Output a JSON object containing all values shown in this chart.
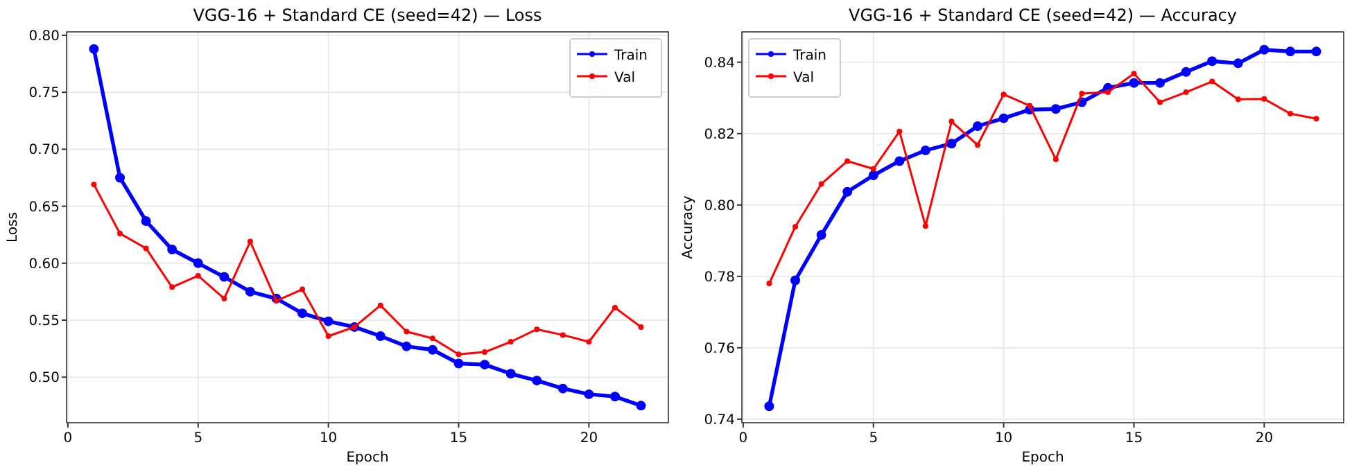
{
  "chart_data": [
    {
      "type": "line",
      "title": "VGG-16 + Standard CE (seed=42) — Loss",
      "xlabel": "Epoch",
      "ylabel": "Loss",
      "x": [
        1,
        2,
        3,
        4,
        5,
        6,
        7,
        8,
        9,
        10,
        11,
        12,
        13,
        14,
        15,
        16,
        17,
        18,
        19,
        20,
        21,
        22
      ],
      "series": [
        {
          "name": "Train",
          "color": "#0000ff",
          "values": [
            0.788,
            0.675,
            0.637,
            0.612,
            0.6,
            0.588,
            0.575,
            0.569,
            0.556,
            0.549,
            0.544,
            0.536,
            0.527,
            0.524,
            0.512,
            0.511,
            0.503,
            0.497,
            0.49,
            0.485,
            0.483,
            0.475
          ]
        },
        {
          "name": "Val",
          "color": "#ff0000",
          "values": [
            0.669,
            0.626,
            0.613,
            0.579,
            0.589,
            0.569,
            0.619,
            0.567,
            0.577,
            0.536,
            0.544,
            0.563,
            0.54,
            0.534,
            0.52,
            0.522,
            0.531,
            0.542,
            0.537,
            0.531,
            0.561,
            0.544
          ]
        }
      ],
      "xlim": [
        -0.05,
        23.05
      ],
      "xticks": [
        0,
        5,
        10,
        15,
        20
      ],
      "ylim": [
        0.46,
        0.803
      ],
      "yticks": [
        {
          "value": 0.5,
          "label": "0.50"
        },
        {
          "value": 0.55,
          "label": "0.55"
        },
        {
          "value": 0.6,
          "label": "0.60"
        },
        {
          "value": 0.65,
          "label": "0.65"
        },
        {
          "value": 0.7,
          "label": "0.70"
        },
        {
          "value": 0.75,
          "label": "0.75"
        },
        {
          "value": 0.8,
          "label": "0.80"
        }
      ],
      "grid": true,
      "legend": "top right",
      "marker": "circle",
      "line_style": "solid"
    },
    {
      "type": "line",
      "title": "VGG-16 + Standard CE (seed=42) — Accuracy",
      "xlabel": "Epoch",
      "ylabel": "Accuracy",
      "x": [
        1,
        2,
        3,
        4,
        5,
        6,
        7,
        8,
        9,
        10,
        11,
        12,
        13,
        14,
        15,
        16,
        17,
        18,
        19,
        20,
        21,
        22
      ],
      "series": [
        {
          "name": "Train",
          "color": "#0000ff",
          "values": [
            0.7436,
            0.7789,
            0.7916,
            0.8037,
            0.8083,
            0.8123,
            0.8153,
            0.8172,
            0.8221,
            0.8243,
            0.8267,
            0.8269,
            0.8288,
            0.8328,
            0.8342,
            0.8342,
            0.8373,
            0.8403,
            0.8397,
            0.8435,
            0.843,
            0.843
          ]
        },
        {
          "name": "Val",
          "color": "#ff0000",
          "values": [
            0.778,
            0.7939,
            0.8059,
            0.8123,
            0.8101,
            0.8206,
            0.7941,
            0.8234,
            0.8168,
            0.831,
            0.8278,
            0.8128,
            0.8312,
            0.8316,
            0.8368,
            0.8288,
            0.8316,
            0.8346,
            0.8296,
            0.8297,
            0.8256,
            0.8242
          ]
        }
      ],
      "xlim": [
        -0.05,
        23.05
      ],
      "xticks": [
        0,
        5,
        10,
        15,
        20
      ],
      "ylim": [
        0.739,
        0.8485
      ],
      "yticks": [
        {
          "value": 0.74,
          "label": "0.74"
        },
        {
          "value": 0.76,
          "label": "0.76"
        },
        {
          "value": 0.78,
          "label": "0.78"
        },
        {
          "value": 0.8,
          "label": "0.80"
        },
        {
          "value": 0.82,
          "label": "0.82"
        },
        {
          "value": 0.84,
          "label": "0.84"
        }
      ],
      "grid": true,
      "legend": "top left",
      "marker": "circle",
      "line_style": "solid"
    }
  ]
}
